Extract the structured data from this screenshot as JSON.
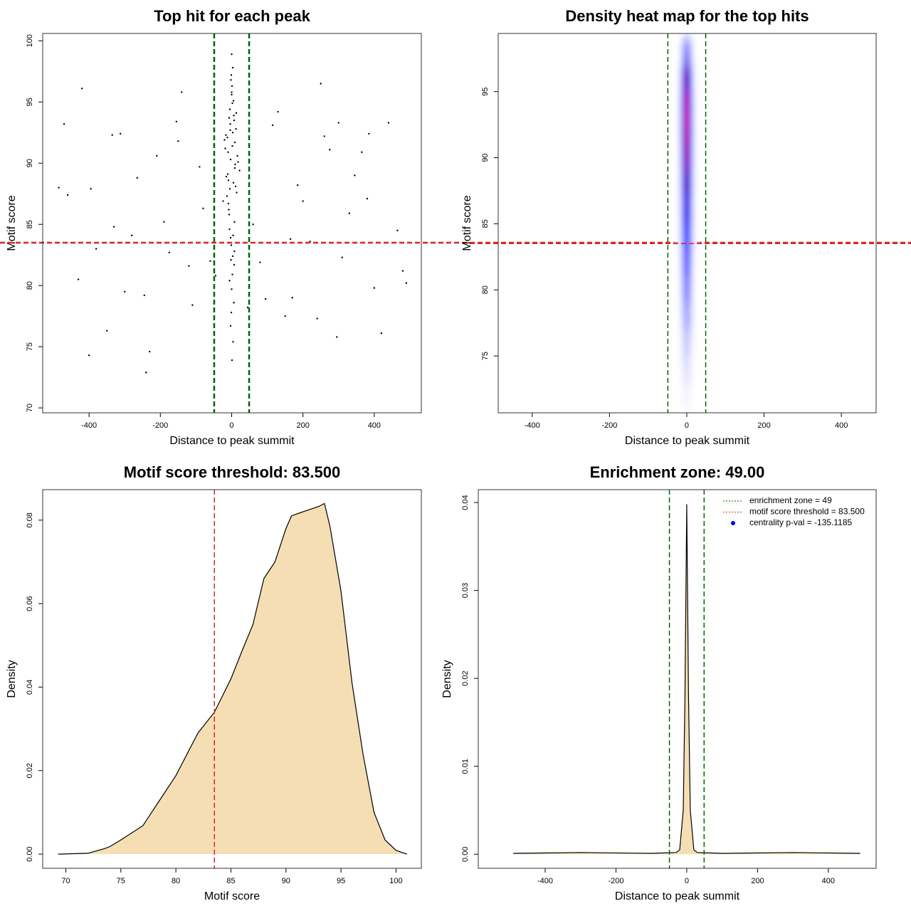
{
  "chart_data": [
    {
      "type": "scatter",
      "title": "Top hit for each peak",
      "xlabel": "Distance to peak summit",
      "ylabel": "Motif score",
      "xlim": [
        -530,
        532
      ],
      "ylim": [
        69.6,
        100.6
      ],
      "xticks": [
        -400,
        -200,
        0,
        200,
        400
      ],
      "yticks": [
        70,
        75,
        80,
        85,
        90,
        95,
        100
      ],
      "color": "#000000",
      "x": [
        -12,
        5,
        0,
        -3,
        8,
        -7,
        2,
        14,
        -18,
        3,
        -1,
        10,
        -5,
        6,
        -9,
        1,
        -2,
        12,
        -15,
        4,
        0,
        -6,
        9,
        -4,
        7,
        -11,
        2,
        -8,
        16,
        -1,
        3,
        -13,
        5,
        -3,
        11,
        -20,
        0,
        6,
        -7,
        22,
        -2,
        8,
        -10,
        1,
        -5,
        13,
        -16,
        4,
        -1,
        9,
        -6,
        2,
        -24,
        7,
        -3,
        18,
        0,
        -9,
        3,
        -4,
        -470,
        -430,
        -395,
        -350,
        -312,
        -280,
        -245,
        -210,
        -175,
        -140,
        -110,
        -80,
        80,
        115,
        150,
        185,
        220,
        260,
        295,
        330,
        365,
        400,
        440,
        480,
        -460,
        -420,
        -380,
        -335,
        -300,
        -265,
        -230,
        -190,
        -155,
        -120,
        -90,
        95,
        130,
        165,
        200,
        240,
        275,
        310,
        345,
        385,
        420,
        465,
        -485,
        -240,
        -60,
        60,
        250,
        490,
        -400,
        -150,
        170,
        380,
        -330,
        300,
        -45,
        45
      ],
      "y": [
        92.1,
        88.4,
        95.6,
        90.3,
        85.2,
        93.7,
        80.9,
        87.6,
        91.2,
        97.8,
        83.3,
        89.9,
        94.4,
        78.6,
        86.7,
        96.3,
        82.1,
        92.8,
        88.9,
        75.4,
        98.9,
        84.6,
        91.7,
        93.2,
        81.7,
        89.1,
        94.9,
        86.2,
        90.6,
        77.8,
        92.5,
        87.3,
        95.1,
        83.9,
        88.1,
        91.9,
        79.7,
        93.9,
        85.8,
        89.4,
        96.8,
        82.8,
        90.9,
        73.9,
        87.9,
        94.1,
        92.3,
        84.1,
        97.2,
        89.6,
        80.4,
        91.4,
        86.9,
        93.5,
        76.7,
        90.1,
        95.8,
        88.6,
        82.4,
        92.7,
        93.2,
        80.5,
        87.9,
        76.3,
        92.4,
        84.1,
        79.2,
        90.6,
        82.7,
        95.8,
        78.4,
        86.3,
        81.9,
        93.1,
        77.5,
        88.2,
        83.6,
        92.2,
        75.8,
        85.9,
        90.9,
        79.8,
        93.3,
        81.2,
        87.4,
        96.1,
        83.0,
        92.3,
        79.5,
        88.8,
        74.6,
        85.2,
        93.4,
        81.6,
        89.7,
        78.9,
        94.2,
        83.8,
        86.9,
        77.3,
        91.1,
        82.3,
        89.0,
        92.4,
        76.1,
        84.5,
        88.0,
        72.9,
        82.0,
        85.0,
        96.5,
        80.2,
        74.3,
        91.8,
        79.0,
        87.1,
        84.8,
        93.3,
        80.8,
        78.2
      ],
      "vlines": [
        -49,
        49
      ],
      "vline_color": "#006400",
      "hline": 83.5,
      "hline_color": "#d62728"
    },
    {
      "type": "heatmap",
      "title": "Density heat map for the top hits",
      "xlabel": "Distance to peak summit",
      "ylabel": "Motif score",
      "xlim": [
        -488,
        490
      ],
      "ylim": [
        70.7,
        99.4
      ],
      "xticks": [
        -400,
        -200,
        0,
        200,
        400
      ],
      "yticks": [
        75,
        80,
        85,
        90,
        95
      ],
      "x": [
        -24,
        -16,
        -8,
        0,
        8,
        16,
        24
      ],
      "y": [
        72,
        74,
        76,
        78,
        80,
        82,
        84,
        86,
        88,
        90,
        92,
        94,
        96,
        98
      ],
      "z": [
        [
          0,
          0,
          0.02,
          0.03,
          0.02,
          0,
          0
        ],
        [
          0,
          0.01,
          0.05,
          0.08,
          0.05,
          0.01,
          0
        ],
        [
          0,
          0.02,
          0.09,
          0.15,
          0.09,
          0.02,
          0
        ],
        [
          0,
          0.04,
          0.15,
          0.25,
          0.15,
          0.04,
          0
        ],
        [
          0,
          0.05,
          0.21,
          0.35,
          0.21,
          0.05,
          0
        ],
        [
          0,
          0.06,
          0.27,
          0.45,
          0.27,
          0.06,
          0
        ],
        [
          0.01,
          0.08,
          0.33,
          0.55,
          0.33,
          0.08,
          0.01
        ],
        [
          0.01,
          0.09,
          0.39,
          0.65,
          0.39,
          0.09,
          0.01
        ],
        [
          0.01,
          0.11,
          0.45,
          0.75,
          0.45,
          0.11,
          0.01
        ],
        [
          0.01,
          0.12,
          0.53,
          0.88,
          0.53,
          0.12,
          0.01
        ],
        [
          0.01,
          0.14,
          0.58,
          0.97,
          0.58,
          0.14,
          0.01
        ],
        [
          0.01,
          0.14,
          0.6,
          1,
          0.6,
          0.14,
          0.01
        ],
        [
          0.01,
          0.11,
          0.48,
          0.8,
          0.48,
          0.11,
          0.01
        ],
        [
          0,
          0.05,
          0.21,
          0.35,
          0.21,
          0.05,
          0
        ]
      ],
      "vlines": [
        -49,
        49
      ],
      "vline_color": "#006400",
      "hline": 83.5,
      "hline_color": "#d62728"
    },
    {
      "type": "area",
      "title": "Motif score threshold: 83.500",
      "xlabel": "Motif score",
      "ylabel": "Density",
      "xlim": [
        67.9,
        102.3
      ],
      "ylim": [
        -0.0034,
        0.0873
      ],
      "xticks": [
        70,
        75,
        80,
        85,
        90,
        95,
        100
      ],
      "yticks": [
        {
          "value": 0,
          "label": "0.00"
        },
        {
          "value": 0.02,
          "label": "0.02"
        },
        {
          "value": 0.04,
          "label": "0.04"
        },
        {
          "value": 0.06,
          "label": "0.06"
        },
        {
          "value": 0.08,
          "label": "0.08"
        }
      ],
      "fill": "#f5deb3",
      "color": "#000000",
      "x": [
        69.3,
        72,
        73.5,
        74,
        75,
        77,
        78.5,
        80,
        82,
        83.5,
        85,
        86,
        87,
        88,
        89,
        90,
        90.5,
        91,
        92,
        93,
        93.5,
        94,
        95,
        96,
        97,
        98,
        99,
        100,
        101
      ],
      "y": [
        0,
        0.0002,
        0.0013,
        0.0018,
        0.0034,
        0.0068,
        0.0128,
        0.0188,
        0.029,
        0.034,
        0.042,
        0.0486,
        0.055,
        0.066,
        0.07,
        0.078,
        0.081,
        0.0815,
        0.0824,
        0.0833,
        0.084,
        0.0785,
        0.063,
        0.041,
        0.024,
        0.01,
        0.0034,
        0.0009,
        0
      ],
      "vlines": [
        83.5
      ],
      "vline_color": "#d62728"
    },
    {
      "type": "area",
      "title": "Enrichment zone: 49.00",
      "xlabel": "Distance to peak summit",
      "ylabel": "Density",
      "xlim": [
        -589,
        535
      ],
      "ylim": [
        -0.0016,
        0.04146
      ],
      "xticks": [
        -400,
        -200,
        0,
        200,
        400
      ],
      "yticks": [
        {
          "value": 0,
          "label": "0.00"
        },
        {
          "value": 0.01,
          "label": "0.01"
        },
        {
          "value": 0.02,
          "label": "0.02"
        },
        {
          "value": 0.03,
          "label": "0.03"
        },
        {
          "value": 0.04,
          "label": "0.04"
        }
      ],
      "fill": "#f5deb3",
      "color": "#000000",
      "x": [
        -490,
        -300,
        -100,
        -30,
        -20,
        -10,
        -5,
        0,
        5,
        10,
        20,
        30,
        100,
        300,
        490
      ],
      "y": [
        0.0001,
        0.0002,
        0.0001,
        0.0002,
        0.0005,
        0.005,
        0.018,
        0.0398,
        0.018,
        0.005,
        0.0005,
        0.0002,
        0.0001,
        0.0002,
        0.0001
      ],
      "vlines": [
        -49,
        49
      ],
      "vline_color": "#006400",
      "legend_position": "topright",
      "legend": [
        {
          "label": "enrichment zone = 49",
          "color": "#006400",
          "kind": "dotted"
        },
        {
          "label": "motif score threshold = 83.500",
          "color": "#d62728",
          "kind": "dotted"
        },
        {
          "label": "centrality p-val = -135.1185",
          "color": "#0000ff",
          "kind": "point"
        }
      ]
    }
  ]
}
